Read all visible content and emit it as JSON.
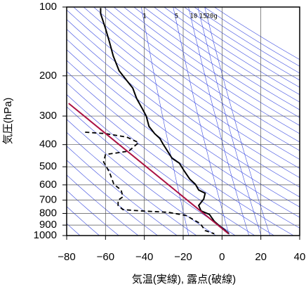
{
  "chart_data": {
    "type": "line",
    "xlabel": "気温(実線), 露点(破線)",
    "ylabel": "気圧(hPa)",
    "xlim": [
      -80,
      40
    ],
    "xticks": [
      {
        "value": -80,
        "label": "−80"
      },
      {
        "value": -60,
        "label": "−60"
      },
      {
        "value": -40,
        "label": "−40"
      },
      {
        "value": -20,
        "label": "−20"
      },
      0,
      20,
      40
    ],
    "ylim": [
      1000,
      100
    ],
    "yticks": [
      100,
      200,
      300,
      400,
      500,
      600,
      700,
      800,
      900,
      1000
    ],
    "log_y": true,
    "grid": true,
    "mixing_ratio_labels": [
      {
        "value": 1,
        "label": "1"
      },
      {
        "value": 5,
        "label": "5"
      },
      {
        "value": 10,
        "label": "10"
      },
      {
        "value": 15,
        "label": "15"
      },
      {
        "value": 20,
        "label": "20g"
      }
    ],
    "series": [
      {
        "color": "#000000",
        "dash": false,
        "x": [
          -62.5,
          -62.5,
          -60,
          -58,
          -56,
          -53,
          -49,
          -46,
          -44,
          -41,
          -39,
          -37.6,
          -34.7,
          -32,
          -30.4,
          -25.7,
          -22,
          -19.5,
          -16.6,
          -13.7,
          -12,
          -8.7,
          -9.4,
          -12,
          -10.8,
          -6.5,
          -4,
          -1.1,
          1.4,
          3.6
        ],
        "values": [
          101,
          107,
          124,
          142,
          164,
          190,
          210,
          226,
          251,
          279,
          300,
          333,
          358,
          376,
          397,
          459,
          482,
          521,
          566,
          596,
          632,
          653,
          692,
          739,
          780,
          808,
          866,
          911,
          945,
          982
        ]
      },
      {
        "color": "#000000",
        "dash": true,
        "x": [
          -70.5,
          -60,
          -49,
          -43,
          -48,
          -60,
          -61,
          -58,
          -55.7,
          -52,
          -51,
          -53.5,
          -53.5,
          -51,
          -42,
          -27.5,
          -18.4,
          -11.2,
          -8.7,
          -4
        ],
        "values": [
          353,
          358,
          371,
          392,
          427,
          442,
          476,
          528,
          596,
          632,
          677,
          700,
          739,
          770,
          780,
          791,
          818,
          886,
          951,
          982
        ]
      },
      {
        "color": "#aa1144",
        "dash": false,
        "x": [
          -79,
          3.3
        ],
        "values": [
          264,
          982
        ]
      }
    ]
  }
}
